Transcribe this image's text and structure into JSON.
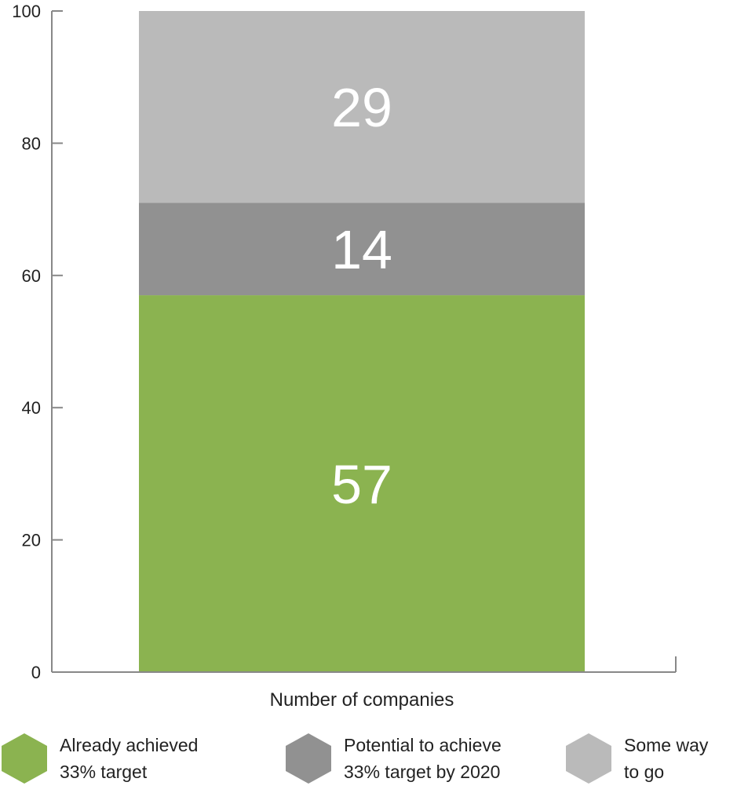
{
  "chart_data": {
    "type": "bar",
    "stacked": true,
    "categories": [
      "Number of companies"
    ],
    "series": [
      {
        "name": "Already achieved 33% target",
        "values": [
          57
        ],
        "color": "#8bb350"
      },
      {
        "name": "Potential to achieve 33% target by 2020",
        "values": [
          14
        ],
        "color": "#919191"
      },
      {
        "name": "Some way to go",
        "values": [
          29
        ],
        "color": "#bababa"
      }
    ],
    "ylim": [
      0,
      100
    ],
    "yticks": [
      0,
      20,
      40,
      60,
      80,
      100
    ],
    "grid": false,
    "legend_position": "bottom"
  },
  "legend": [
    {
      "line1": "Already achieved",
      "line2": "33% target",
      "color": "#8bb350",
      "icon": "hexagon-icon"
    },
    {
      "line1": "Potential to achieve",
      "line2": "33% target by 2020",
      "color": "#919191",
      "icon": "hexagon-icon"
    },
    {
      "line1": "Some way",
      "line2": "to go",
      "color": "#bababa",
      "icon": "hexagon-icon"
    }
  ]
}
